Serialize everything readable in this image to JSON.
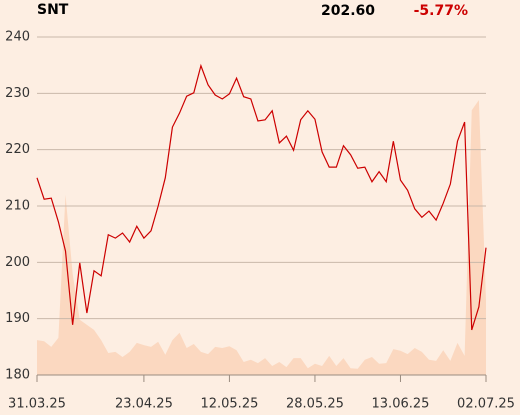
{
  "header": {
    "symbol": "SNT",
    "price": "202.60",
    "change": "-5.77%"
  },
  "chart_data": {
    "type": "line",
    "categories": [
      "31.03.25",
      null,
      null,
      null,
      null,
      null,
      null,
      null,
      null,
      null,
      null,
      null,
      null,
      null,
      null,
      "23.04.25",
      null,
      null,
      null,
      null,
      null,
      null,
      null,
      null,
      null,
      null,
      null,
      "12.05.25",
      null,
      null,
      null,
      null,
      null,
      null,
      null,
      null,
      null,
      null,
      null,
      "28.05.25",
      null,
      null,
      null,
      null,
      null,
      null,
      null,
      null,
      null,
      null,
      null,
      "13.06.25",
      null,
      null,
      null,
      null,
      null,
      null,
      null,
      null,
      null,
      null,
      null,
      "02.07.25"
    ],
    "series": [
      {
        "color": "#cc0000",
        "values": [
          215.0,
          211.2,
          211.4,
          207.2,
          202.0,
          188.9,
          199.9,
          191.0,
          198.5,
          197.6,
          204.9,
          204.3,
          205.2,
          203.6,
          206.4,
          204.3,
          205.6,
          210.0,
          215.0,
          224.0,
          226.5,
          229.5,
          230.1,
          234.9,
          231.5,
          229.7,
          229.0,
          229.9,
          232.7,
          229.4,
          229.0,
          225.1,
          225.3,
          226.9,
          221.2,
          222.4,
          219.9,
          225.3,
          226.9,
          225.4,
          219.6,
          216.9,
          216.9,
          220.7,
          219.1,
          216.7,
          216.9,
          214.3,
          216.1,
          214.3,
          221.5,
          214.6,
          212.8,
          209.5,
          208.0,
          209.1,
          207.5,
          210.5,
          213.9,
          221.5,
          224.9,
          188.0,
          192.1,
          202.6
        ]
      }
    ],
    "volume": {
      "color": "#fbd8c0",
      "values": [
        6.2,
        6.0,
        5.0,
        6.6,
        32.0,
        18.0,
        9.8,
        8.9,
        8.0,
        6.2,
        3.9,
        4.1,
        3.2,
        4.1,
        5.7,
        5.3,
        5.0,
        5.9,
        3.6,
        6.2,
        7.5,
        4.8,
        5.5,
        4.1,
        3.7,
        5.0,
        4.8,
        5.1,
        4.4,
        2.3,
        2.7,
        2.1,
        3.0,
        1.6,
        2.3,
        1.4,
        3.0,
        3.0,
        1.2,
        2.0,
        1.6,
        3.4,
        1.6,
        3.0,
        1.2,
        1.1,
        2.7,
        3.2,
        2.0,
        2.1,
        4.6,
        4.3,
        3.7,
        4.8,
        4.1,
        2.7,
        2.5,
        4.4,
        2.5,
        5.7,
        3.4,
        47.0,
        48.8,
        13.3
      ]
    },
    "ylim": [
      180,
      240
    ],
    "yticks": [
      180,
      190,
      200,
      210,
      220,
      230,
      240
    ],
    "grid": true
  }
}
